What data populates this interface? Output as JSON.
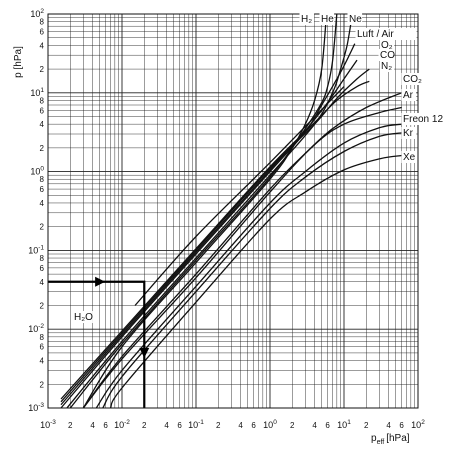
{
  "chart_data": {
    "type": "line",
    "title": "",
    "xscale": "log",
    "yscale": "log",
    "xlim": [
      0.001,
      100
    ],
    "ylim": [
      0.001,
      100
    ],
    "grid": true,
    "xlabel": {
      "main": "p",
      "sub": "eff",
      "unit": "[hPa]"
    },
    "ylabel": "p [hPa]",
    "x_ticks": [
      {
        "base": "10",
        "exp": "-3"
      },
      {
        "mant": "2"
      },
      {
        "mant": "4"
      },
      {
        "mant": "6"
      },
      {
        "base": "10",
        "exp": "-2"
      },
      {
        "mant": "2"
      },
      {
        "mant": "4"
      },
      {
        "mant": "6"
      },
      {
        "base": "10",
        "exp": "-1"
      },
      {
        "mant": "2"
      },
      {
        "mant": "4"
      },
      {
        "mant": "6"
      },
      {
        "base": "10",
        "exp": "0"
      },
      {
        "mant": "2"
      },
      {
        "mant": "4"
      },
      {
        "mant": "6"
      },
      {
        "base": "10",
        "exp": "1"
      },
      {
        "mant": "2"
      },
      {
        "mant": "4"
      },
      {
        "mant": "6"
      },
      {
        "base": "10",
        "exp": "2"
      }
    ],
    "y_ticks": [
      {
        "base": "10",
        "exp": "-3"
      },
      {
        "mant": "2"
      },
      {
        "mant": "4"
      },
      {
        "mant": "6"
      },
      {
        "mant": "8"
      },
      {
        "base": "10",
        "exp": "-2"
      },
      {
        "mant": "2"
      },
      {
        "mant": "4"
      },
      {
        "mant": "6"
      },
      {
        "mant": "8"
      },
      {
        "base": "10",
        "exp": "-1"
      },
      {
        "mant": "2"
      },
      {
        "mant": "4"
      },
      {
        "mant": "6"
      },
      {
        "mant": "8"
      },
      {
        "base": "10",
        "exp": "0"
      },
      {
        "mant": "2"
      },
      {
        "mant": "4"
      },
      {
        "mant": "6"
      },
      {
        "mant": "8"
      },
      {
        "base": "10",
        "exp": "1"
      },
      {
        "mant": "2"
      },
      {
        "mant": "4"
      },
      {
        "mant": "6"
      },
      {
        "mant": "8"
      },
      {
        "base": "10",
        "exp": "2"
      }
    ],
    "series": [
      {
        "name": "H₂",
        "label": "H2",
        "points": [
          [
            0.003,
            0.001
          ],
          [
            0.01,
            0.006
          ],
          [
            0.1,
            0.07
          ],
          [
            1,
            0.8
          ],
          [
            2,
            2
          ],
          [
            3,
            4
          ],
          [
            4,
            8
          ],
          [
            5,
            20
          ],
          [
            5.8,
            100
          ]
        ]
      },
      {
        "name": "He",
        "label": "He",
        "points": [
          [
            0.002,
            0.001
          ],
          [
            0.01,
            0.0065
          ],
          [
            0.1,
            0.075
          ],
          [
            1,
            0.85
          ],
          [
            3,
            3.5
          ],
          [
            5,
            7.5
          ],
          [
            6,
            12
          ],
          [
            7,
            25
          ],
          [
            8,
            100
          ]
        ]
      },
      {
        "name": "Ne",
        "label": "Ne",
        "points": [
          [
            0.0018,
            0.001
          ],
          [
            0.01,
            0.007
          ],
          [
            0.1,
            0.08
          ],
          [
            1,
            0.9
          ],
          [
            4,
            4
          ],
          [
            7,
            10
          ],
          [
            9,
            20
          ],
          [
            11,
            40
          ],
          [
            13,
            100
          ]
        ]
      },
      {
        "name": "Luft / Air",
        "label": "Luft / Air",
        "points": [
          [
            0.0015,
            0.001
          ],
          [
            0.01,
            0.008
          ],
          [
            0.1,
            0.09
          ],
          [
            1,
            1
          ],
          [
            3,
            3.2
          ],
          [
            5,
            7
          ],
          [
            7,
            12
          ],
          [
            10,
            22
          ],
          [
            14,
            42
          ]
        ]
      },
      {
        "name": "O₂",
        "label": "O2",
        "points": [
          [
            0.0015,
            0.0011
          ],
          [
            0.01,
            0.0085
          ],
          [
            0.1,
            0.095
          ],
          [
            1,
            1.05
          ],
          [
            3,
            3.3
          ],
          [
            6,
            7.5
          ],
          [
            10,
            15
          ],
          [
            15,
            26
          ]
        ]
      },
      {
        "name": "CO",
        "label": "CO",
        "points": [
          [
            0.0015,
            0.0012
          ],
          [
            0.01,
            0.009
          ],
          [
            0.1,
            0.1
          ],
          [
            1,
            1.1
          ],
          [
            4,
            4
          ],
          [
            8,
            8.5
          ],
          [
            15,
            15
          ],
          [
            22,
            20
          ]
        ]
      },
      {
        "name": "N₂",
        "label": "N2",
        "points": [
          [
            0.0015,
            0.0013
          ],
          [
            0.01,
            0.0095
          ],
          [
            0.1,
            0.105
          ],
          [
            1,
            1.15
          ],
          [
            4,
            4.2
          ],
          [
            8,
            8
          ],
          [
            15,
            12
          ],
          [
            22,
            14
          ]
        ]
      },
      {
        "name": "CO₂",
        "label": "CO2",
        "points": [
          [
            0.003,
            0.001
          ],
          [
            0.01,
            0.0045
          ],
          [
            0.1,
            0.05
          ],
          [
            1,
            0.6
          ],
          [
            3,
            1.7
          ],
          [
            7,
            3.5
          ],
          [
            20,
            6.5
          ],
          [
            60,
            10
          ]
        ]
      },
      {
        "name": "Ar",
        "label": "Ar",
        "points": [
          [
            0.003,
            0.001
          ],
          [
            0.01,
            0.0042
          ],
          [
            0.1,
            0.045
          ],
          [
            1,
            0.55
          ],
          [
            4,
            2.2
          ],
          [
            10,
            4
          ],
          [
            30,
            5.6
          ],
          [
            60,
            6.5
          ]
        ]
      },
      {
        "name": "Freon 12",
        "label": "Freon 12",
        "points": [
          [
            0.0045,
            0.001
          ],
          [
            0.01,
            0.003
          ],
          [
            0.1,
            0.035
          ],
          [
            1,
            0.4
          ],
          [
            3,
            1
          ],
          [
            10,
            2.3
          ],
          [
            30,
            3.6
          ],
          [
            60,
            4
          ]
        ]
      },
      {
        "name": "Kr",
        "label": "Kr",
        "points": [
          [
            0.0055,
            0.001
          ],
          [
            0.01,
            0.0025
          ],
          [
            0.1,
            0.03
          ],
          [
            1,
            0.34
          ],
          [
            3,
            0.85
          ],
          [
            10,
            1.8
          ],
          [
            30,
            2.8
          ],
          [
            60,
            3.1
          ]
        ]
      },
      {
        "name": "Xe",
        "label": "Xe",
        "points": [
          [
            0.007,
            0.001
          ],
          [
            0.01,
            0.0018
          ],
          [
            0.1,
            0.022
          ],
          [
            1,
            0.25
          ],
          [
            3,
            0.55
          ],
          [
            10,
            1.05
          ],
          [
            30,
            1.45
          ],
          [
            60,
            1.6
          ]
        ]
      },
      {
        "name": "H₂O",
        "label": "H2O",
        "points": [
          [
            0.015,
            0.02
          ],
          [
            0.1,
            0.15
          ],
          [
            1,
            1.3
          ],
          [
            10,
            12
          ]
        ]
      }
    ],
    "example_path": {
      "start_y": 0.04,
      "corner_x": 0.02,
      "end_y": 0.001
    }
  }
}
